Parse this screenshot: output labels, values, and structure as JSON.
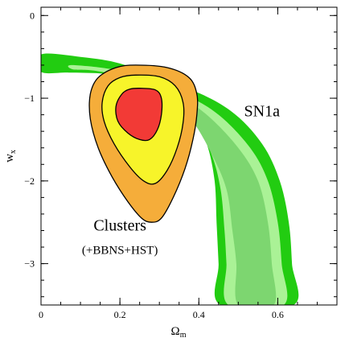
{
  "chart_data": {
    "type": "contour",
    "xlabel": "Ω",
    "xlabel_sub": "m",
    "ylabel": "w",
    "ylabel_sub": "x",
    "xlim": [
      0,
      0.75
    ],
    "ylim": [
      -3.5,
      0.1
    ],
    "x_ticks": [
      "0",
      "0.2",
      "0.4",
      "0.6"
    ],
    "x_tick_values": [
      0,
      0.2,
      0.4,
      0.6
    ],
    "y_ticks": [
      "0",
      "−1",
      "−2",
      "−3"
    ],
    "y_tick_values": [
      0,
      -1,
      -2,
      -3
    ],
    "grid": false,
    "annotations": [
      {
        "text": "SN1a",
        "x": 0.56,
        "y": -1.22,
        "size": "big"
      },
      {
        "text": "Clusters",
        "x": 0.2,
        "y": -2.6,
        "size": "big"
      },
      {
        "text": "(+BBNS+HST)",
        "x": 0.2,
        "y": -2.88,
        "size": "small"
      }
    ],
    "series": [
      {
        "name": "SN1a",
        "style": "band",
        "levels": [
          {
            "level": "outer",
            "color": "#22cc11",
            "left": [
              [
                0,
                -0.47
              ],
              [
                0.1,
                -0.5
              ],
              [
                0.2,
                -0.58
              ],
              [
                0.3,
                -0.78
              ],
              [
                0.38,
                -1.15
              ],
              [
                0.42,
                -1.55
              ],
              [
                0.44,
                -2.0
              ],
              [
                0.445,
                -2.5
              ],
              [
                0.45,
                -3.0
              ],
              [
                0.455,
                -3.5
              ]
            ],
            "right": [
              [
                0.64,
                -3.5
              ],
              [
                0.636,
                -3.0
              ],
              [
                0.628,
                -2.5
              ],
              [
                0.605,
                -2.0
              ],
              [
                0.56,
                -1.55
              ],
              [
                0.48,
                -1.15
              ],
              [
                0.37,
                -0.88
              ],
              [
                0.25,
                -0.75
              ],
              [
                0.15,
                -0.7
              ],
              [
                0.07,
                -0.69
              ],
              [
                0,
                -0.68
              ]
            ]
          },
          {
            "level": "middle",
            "color": "#aaf296",
            "left": [
              [
                0.08,
                -0.6
              ],
              [
                0.2,
                -0.67
              ],
              [
                0.3,
                -0.86
              ],
              [
                0.38,
                -1.2
              ],
              [
                0.43,
                -1.65
              ],
              [
                0.455,
                -2.1
              ],
              [
                0.465,
                -2.6
              ],
              [
                0.47,
                -3.0
              ],
              [
                0.475,
                -3.5
              ]
            ],
            "right": [
              [
                0.615,
                -3.5
              ],
              [
                0.61,
                -3.0
              ],
              [
                0.6,
                -2.5
              ],
              [
                0.575,
                -2.0
              ],
              [
                0.53,
                -1.6
              ],
              [
                0.45,
                -1.2
              ],
              [
                0.36,
                -0.95
              ],
              [
                0.25,
                -0.78
              ],
              [
                0.14,
                -0.67
              ],
              [
                0.08,
                -0.65
              ]
            ]
          },
          {
            "level": "inner",
            "color": "#7dd670",
            "left": [
              [
                0.26,
                -0.83
              ],
              [
                0.32,
                -0.98
              ],
              [
                0.38,
                -1.25
              ],
              [
                0.43,
                -1.65
              ],
              [
                0.47,
                -2.1
              ],
              [
                0.485,
                -2.6
              ],
              [
                0.495,
                -3.0
              ],
              [
                0.5,
                -3.5
              ]
            ],
            "right": [
              [
                0.59,
                -3.5
              ],
              [
                0.585,
                -3.0
              ],
              [
                0.575,
                -2.5
              ],
              [
                0.55,
                -2.0
              ],
              [
                0.5,
                -1.6
              ],
              [
                0.42,
                -1.2
              ],
              [
                0.34,
                -0.95
              ],
              [
                0.26,
                -0.83
              ]
            ]
          }
        ]
      },
      {
        "name": "Clusters",
        "style": "contours",
        "levels": [
          {
            "level": "outer",
            "color": "#f5ad3a",
            "points": [
              [
                0.24,
                -0.6
              ],
              [
                0.32,
                -0.63
              ],
              [
                0.375,
                -0.75
              ],
              [
                0.395,
                -0.95
              ],
              [
                0.395,
                -1.2
              ],
              [
                0.385,
                -1.5
              ],
              [
                0.365,
                -1.85
              ],
              [
                0.335,
                -2.2
              ],
              [
                0.305,
                -2.45
              ],
              [
                0.28,
                -2.5
              ],
              [
                0.255,
                -2.45
              ],
              [
                0.22,
                -2.25
              ],
              [
                0.18,
                -1.95
              ],
              [
                0.145,
                -1.6
              ],
              [
                0.125,
                -1.25
              ],
              [
                0.125,
                -0.95
              ],
              [
                0.145,
                -0.75
              ],
              [
                0.19,
                -0.63
              ]
            ]
          },
          {
            "level": "middle",
            "color": "#f7f42a",
            "points": [
              [
                0.24,
                -0.72
              ],
              [
                0.3,
                -0.74
              ],
              [
                0.34,
                -0.85
              ],
              [
                0.36,
                -1.05
              ],
              [
                0.36,
                -1.3
              ],
              [
                0.345,
                -1.6
              ],
              [
                0.32,
                -1.87
              ],
              [
                0.29,
                -2.03
              ],
              [
                0.26,
                -2.0
              ],
              [
                0.225,
                -1.83
              ],
              [
                0.185,
                -1.55
              ],
              [
                0.16,
                -1.28
              ],
              [
                0.155,
                -1.05
              ],
              [
                0.17,
                -0.85
              ],
              [
                0.2,
                -0.75
              ]
            ]
          },
          {
            "level": "inner",
            "color": "#f23a36",
            "points": [
              [
                0.25,
                -0.88
              ],
              [
                0.29,
                -0.9
              ],
              [
                0.305,
                -1.0
              ],
              [
                0.305,
                -1.2
              ],
              [
                0.295,
                -1.38
              ],
              [
                0.275,
                -1.5
              ],
              [
                0.25,
                -1.5
              ],
              [
                0.22,
                -1.42
              ],
              [
                0.195,
                -1.28
              ],
              [
                0.19,
                -1.1
              ],
              [
                0.205,
                -0.95
              ],
              [
                0.225,
                -0.89
              ]
            ]
          }
        ]
      }
    ]
  }
}
